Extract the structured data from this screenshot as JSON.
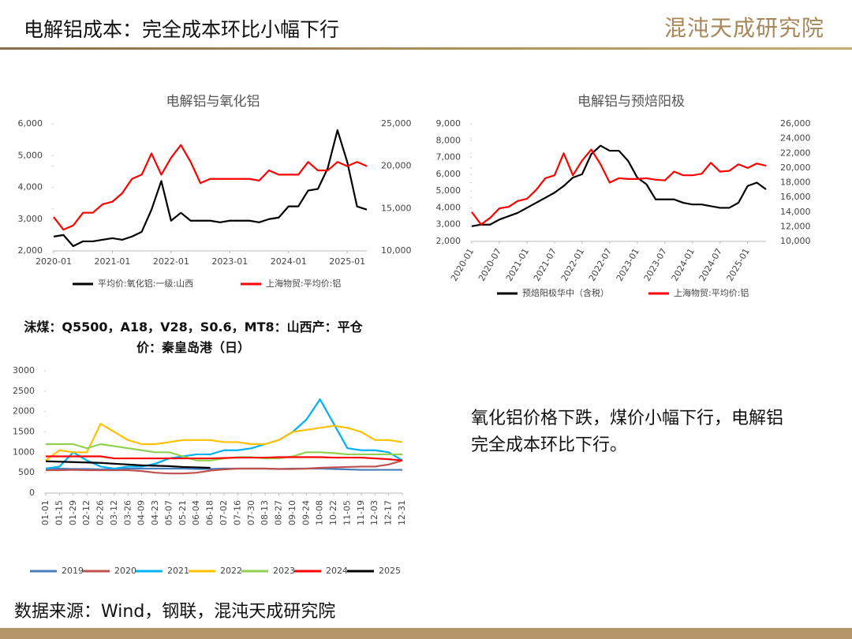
{
  "header": {
    "title": "电解铝成本：完全成本环比小幅下行",
    "logo": "混沌天成研究院"
  },
  "note": "氧化铝价格下跌，煤价小幅下行，电解铝完全成本环比下行。",
  "source": "数据来源：Wind，钢联，混沌天成研究院",
  "chart_data": [
    {
      "type": "line",
      "title": "电解铝与氧化铝",
      "x": [
        "2020-01",
        "2020-03",
        "2020-05",
        "2020-07",
        "2020-09",
        "2020-11",
        "2021-01",
        "2021-03",
        "2021-05",
        "2021-07",
        "2021-09",
        "2021-11",
        "2022-01",
        "2022-03",
        "2022-05",
        "2022-07",
        "2022-09",
        "2022-11",
        "2023-01",
        "2023-03",
        "2023-05",
        "2023-07",
        "2023-09",
        "2023-11",
        "2024-01",
        "2024-03",
        "2024-05",
        "2024-07",
        "2024-09",
        "2024-11",
        "2025-01",
        "2025-03",
        "2025-05"
      ],
      "xticks": [
        "2020-01",
        "2021-01",
        "2022-01",
        "2023-01",
        "2024-01",
        "2025-01"
      ],
      "ylim": [
        2000,
        6000
      ],
      "yticks": [
        {
          "value": 2000,
          "label": "2,000"
        },
        {
          "value": 3000,
          "label": "3,000"
        },
        {
          "value": 4000,
          "label": "4,000"
        },
        {
          "value": 5000,
          "label": "5,000"
        },
        {
          "value": 6000,
          "label": "6,000"
        }
      ],
      "y2lim": [
        10000,
        25000
      ],
      "y2ticks": [
        {
          "value": 10000,
          "label": "10,000"
        },
        {
          "value": 15000,
          "label": "15,000"
        },
        {
          "value": 20000,
          "label": "20,000"
        },
        {
          "value": 25000,
          "label": "25,000"
        }
      ],
      "series": [
        {
          "name": "平均价:氧化铝:一级:山西",
          "color": "#000000",
          "values": [
            2450,
            2500,
            2150,
            2300,
            2300,
            2350,
            2400,
            2350,
            2450,
            2600,
            3300,
            4200,
            2950,
            3200,
            2950,
            2950,
            2950,
            2900,
            2950,
            2950,
            2950,
            2900,
            3000,
            3050,
            3400,
            3400,
            3900,
            3950,
            4600,
            5800,
            4800,
            3400,
            3300
          ]
        },
        {
          "name": "上海物贸:平均价:铝",
          "color": "#ff0000",
          "axis": "y2",
          "values": [
            14000,
            12500,
            13000,
            14500,
            14500,
            15500,
            15800,
            16800,
            18500,
            19000,
            21500,
            19000,
            21000,
            22500,
            20500,
            18000,
            18500,
            18500,
            18500,
            18500,
            18500,
            18300,
            19500,
            19000,
            19000,
            19000,
            20500,
            19500,
            19500,
            20500,
            20000,
            20500,
            20000
          ]
        }
      ]
    },
    {
      "type": "line",
      "title": "电解铝与预焙阳极",
      "x": [
        "2020-01",
        "2020-03",
        "2020-05",
        "2020-07",
        "2020-09",
        "2020-11",
        "2021-01",
        "2021-03",
        "2021-05",
        "2021-07",
        "2021-09",
        "2021-11",
        "2022-01",
        "2022-03",
        "2022-05",
        "2022-07",
        "2022-09",
        "2022-11",
        "2023-01",
        "2023-03",
        "2023-05",
        "2023-07",
        "2023-09",
        "2023-11",
        "2024-01",
        "2024-03",
        "2024-05",
        "2024-07",
        "2024-09",
        "2024-11",
        "2025-01",
        "2025-03",
        "2025-05"
      ],
      "xticks": [
        "2020-01",
        "2020-07",
        "2021-01",
        "2021-07",
        "2022-01",
        "2022-07",
        "2023-01",
        "2023-07",
        "2024-01",
        "2024-07",
        "2025-01"
      ],
      "ylim": [
        2000,
        9000
      ],
      "yticks": [
        {
          "value": 2000,
          "label": "2,000"
        },
        {
          "value": 3000,
          "label": "3,000"
        },
        {
          "value": 4000,
          "label": "4,000"
        },
        {
          "value": 5000,
          "label": "5,000"
        },
        {
          "value": 6000,
          "label": "6,000"
        },
        {
          "value": 7000,
          "label": "7,000"
        },
        {
          "value": 8000,
          "label": "8,000"
        },
        {
          "value": 9000,
          "label": "9,000"
        }
      ],
      "y2lim": [
        10000,
        26000
      ],
      "y2ticks": [
        {
          "value": 10000,
          "label": "10,000"
        },
        {
          "value": 12000,
          "label": "12,000"
        },
        {
          "value": 14000,
          "label": "14,000"
        },
        {
          "value": 16000,
          "label": "16,000"
        },
        {
          "value": 18000,
          "label": "18,000"
        },
        {
          "value": 20000,
          "label": "20,000"
        },
        {
          "value": 22000,
          "label": "22,000"
        },
        {
          "value": 24000,
          "label": "24,000"
        },
        {
          "value": 26000,
          "label": "26,000"
        }
      ],
      "series": [
        {
          "name": "预焙阳极华中（含税）",
          "color": "#000000",
          "values": [
            2900,
            3000,
            3000,
            3300,
            3500,
            3700,
            4000,
            4300,
            4600,
            4900,
            5300,
            5800,
            6000,
            7200,
            7700,
            7400,
            7400,
            6800,
            5800,
            5400,
            4500,
            4500,
            4500,
            4300,
            4200,
            4200,
            4100,
            4000,
            4000,
            4300,
            5300,
            5500,
            5100
          ]
        },
        {
          "name": "上海物贸:平均价:铝",
          "color": "#ff0000",
          "axis": "y2",
          "values": [
            14000,
            12300,
            13200,
            14500,
            14700,
            15500,
            15800,
            17000,
            18600,
            19000,
            22000,
            19000,
            21000,
            22500,
            20500,
            18000,
            18600,
            18500,
            18500,
            18600,
            18400,
            18300,
            19500,
            19000,
            19000,
            19200,
            20700,
            19500,
            19600,
            20500,
            20000,
            20600,
            20300
          ]
        }
      ]
    },
    {
      "type": "line",
      "title": "沫煤：Q5500，A18，V28，S0.6，MT8：山西产：平仓价：秦皇岛港（日）",
      "categories": [
        "01-01",
        "01-15",
        "01-29",
        "02-12",
        "02-26",
        "03-12",
        "03-26",
        "04-09",
        "04-23",
        "05-07",
        "05-21",
        "06-04",
        "06-18",
        "07-02",
        "07-16",
        "07-30",
        "08-13",
        "08-27",
        "09-10",
        "09-24",
        "10-08",
        "10-22",
        "11-05",
        "11-19",
        "12-03",
        "12-17",
        "12-31"
      ],
      "ylim": [
        0,
        3000
      ],
      "yticks": [
        0,
        500,
        1000,
        1500,
        2000,
        2500,
        3000
      ],
      "series": [
        {
          "name": "2019",
          "color": "#4a7ebb",
          "values": [
            600,
            600,
            590,
            590,
            580,
            590,
            600,
            600,
            600,
            600,
            600,
            590,
            590,
            600,
            600,
            600,
            600,
            590,
            600,
            600,
            600,
            590,
            580,
            570,
            570,
            570,
            570
          ]
        },
        {
          "name": "2020",
          "color": "#c0504d",
          "values": [
            560,
            560,
            570,
            560,
            560,
            560,
            560,
            540,
            500,
            480,
            480,
            500,
            550,
            580,
            600,
            600,
            600,
            590,
            590,
            600,
            620,
            630,
            640,
            650,
            650,
            700,
            800
          ]
        },
        {
          "name": "2021",
          "color": "#00b0f0",
          "values": [
            600,
            650,
            1000,
            800,
            650,
            600,
            650,
            650,
            720,
            850,
            900,
            950,
            950,
            1050,
            1050,
            1100,
            1200,
            1300,
            1500,
            1800,
            2300,
            1700,
            1100,
            1050,
            1050,
            1000,
            800
          ]
        },
        {
          "name": "2022",
          "color": "#ffc000",
          "values": [
            800,
            1050,
            1000,
            1000,
            1700,
            1500,
            1300,
            1200,
            1200,
            1250,
            1300,
            1300,
            1300,
            1250,
            1250,
            1200,
            1200,
            1300,
            1500,
            1550,
            1600,
            1650,
            1600,
            1500,
            1300,
            1300,
            1250
          ]
        },
        {
          "name": "2023",
          "color": "#92d050",
          "values": [
            1200,
            1200,
            1200,
            1100,
            1200,
            1150,
            1100,
            1050,
            1000,
            1000,
            900,
            800,
            800,
            850,
            880,
            880,
            850,
            850,
            900,
            1000,
            1000,
            980,
            950,
            950,
            950,
            950,
            950
          ]
        },
        {
          "name": "2024",
          "color": "#ff0000",
          "values": [
            900,
            900,
            900,
            900,
            900,
            850,
            850,
            850,
            850,
            850,
            850,
            850,
            850,
            860,
            870,
            870,
            870,
            880,
            880,
            880,
            880,
            870,
            870,
            870,
            850,
            830,
            800
          ]
        },
        {
          "name": "2025",
          "color": "#000000",
          "values": [
            780,
            770,
            760,
            750,
            740,
            720,
            700,
            680,
            670,
            660,
            640,
            630,
            620,
            null,
            null,
            null,
            null,
            null,
            null,
            null,
            null,
            null,
            null,
            null,
            null,
            null,
            null
          ]
        }
      ]
    }
  ]
}
